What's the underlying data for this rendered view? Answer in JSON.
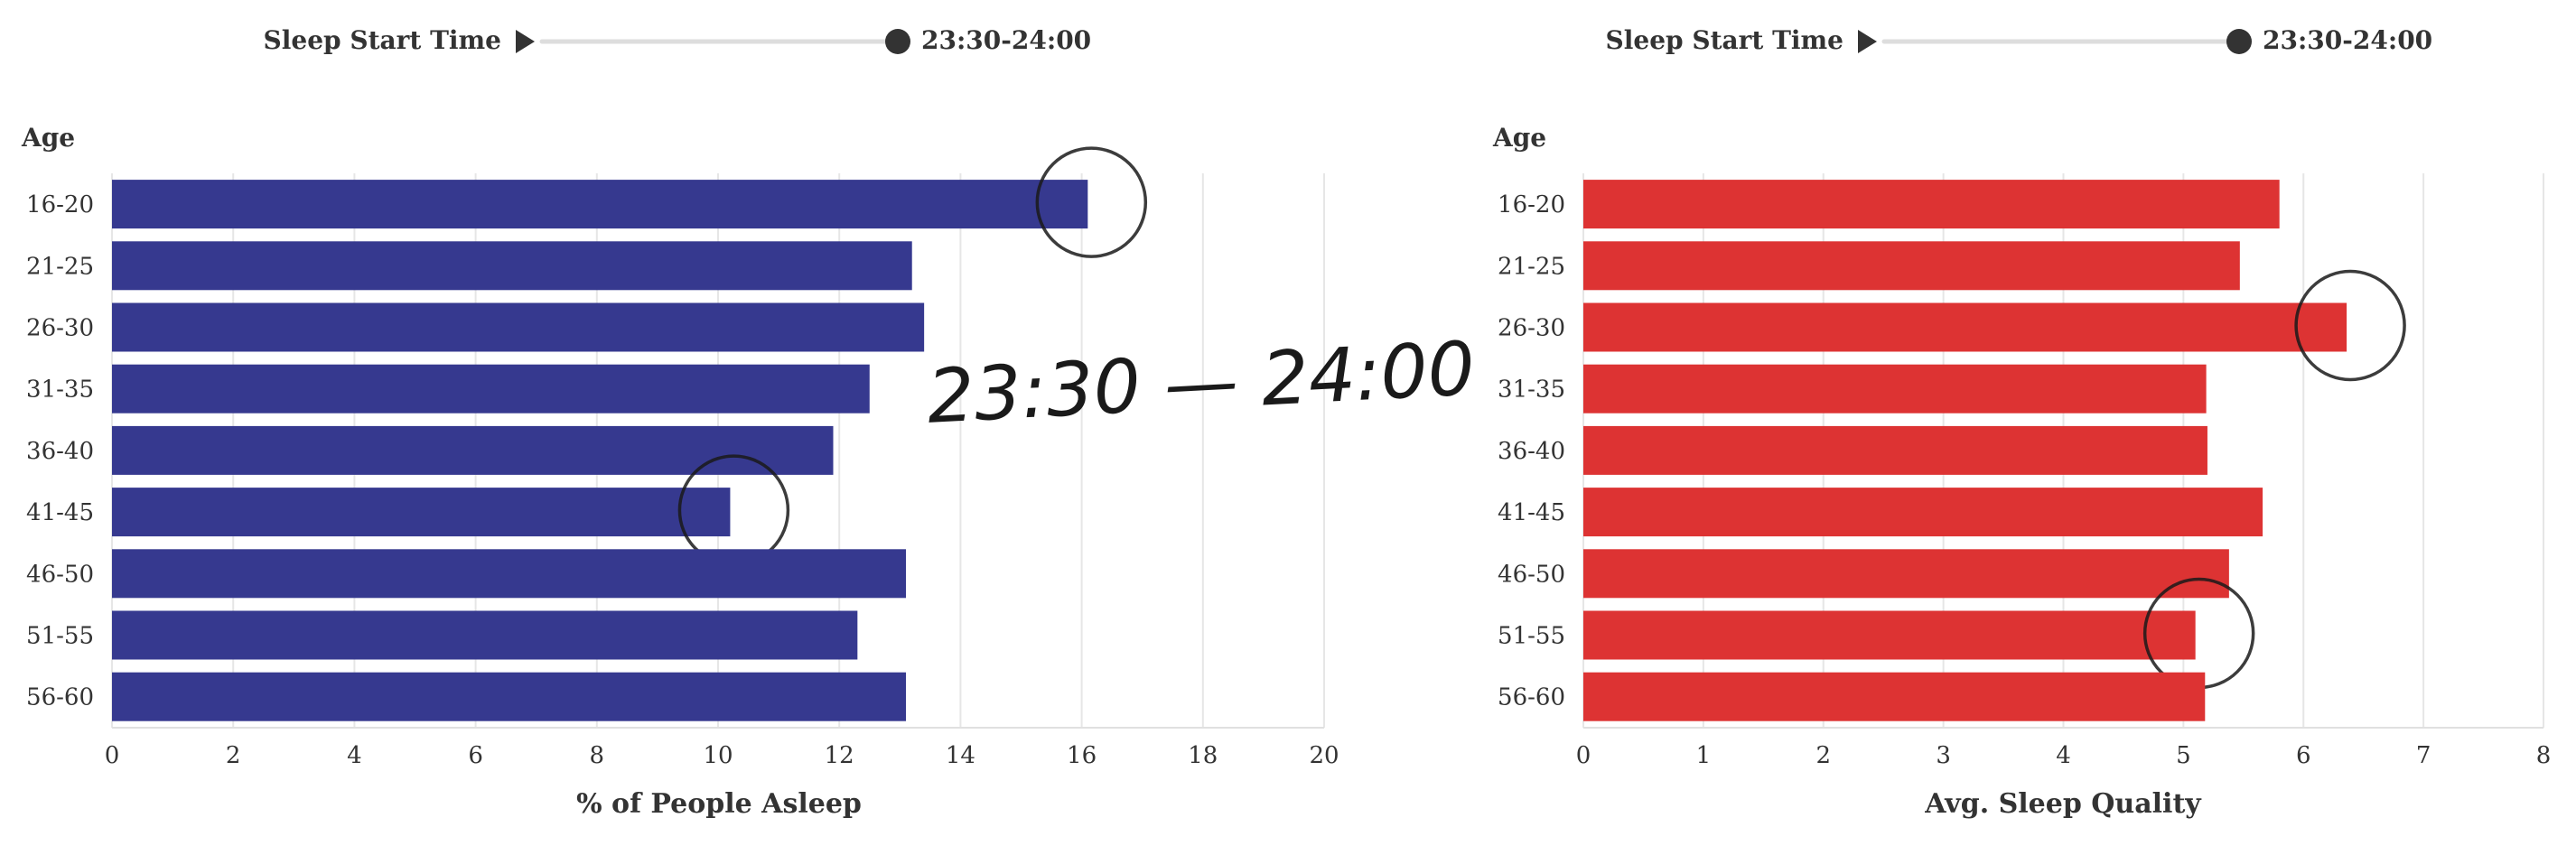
{
  "left_panel": {
    "slider": {
      "label": "Sleep Start Time",
      "value_label": "23:30-24:00",
      "fraction": 1.0
    },
    "annotation_text": "23:30 — 24:00"
  },
  "right_panel": {
    "slider": {
      "label": "Sleep Start Time",
      "value_label": "23:30-24:00",
      "fraction": 1.0
    }
  },
  "colors": {
    "left_bars": "#36398f",
    "right_bars": "#dd3333",
    "grid": "#e6e6e6",
    "text": "#333333",
    "ink": "#1a1a1a"
  },
  "chart_data": [
    {
      "type": "bar",
      "orientation": "horizontal",
      "categories": [
        "16-20",
        "21-25",
        "26-30",
        "31-35",
        "36-40",
        "41-45",
        "46-50",
        "51-55",
        "56-60"
      ],
      "values": [
        16.1,
        13.2,
        13.4,
        12.5,
        11.9,
        10.2,
        13.1,
        12.3,
        13.1
      ],
      "ylabel": "Age",
      "xlabel": "% of People Asleep",
      "xlim": [
        0,
        20
      ],
      "xticks": [
        0,
        2,
        4,
        6,
        8,
        10,
        12,
        14,
        16,
        18,
        20
      ],
      "grid": true,
      "circled_categories": [
        "16-20",
        "41-45"
      ]
    },
    {
      "type": "bar",
      "orientation": "horizontal",
      "categories": [
        "16-20",
        "21-25",
        "26-30",
        "31-35",
        "36-40",
        "41-45",
        "46-50",
        "51-55",
        "56-60"
      ],
      "values": [
        5.8,
        5.47,
        6.36,
        5.19,
        5.2,
        5.66,
        5.38,
        5.1,
        5.18
      ],
      "ylabel": "Age",
      "xlabel": "Avg. Sleep Quality",
      "xlim": [
        0,
        8
      ],
      "xticks": [
        0,
        1,
        2,
        3,
        4,
        5,
        6,
        7,
        8
      ],
      "grid": true,
      "circled_categories": [
        "26-30",
        "51-55"
      ]
    }
  ]
}
